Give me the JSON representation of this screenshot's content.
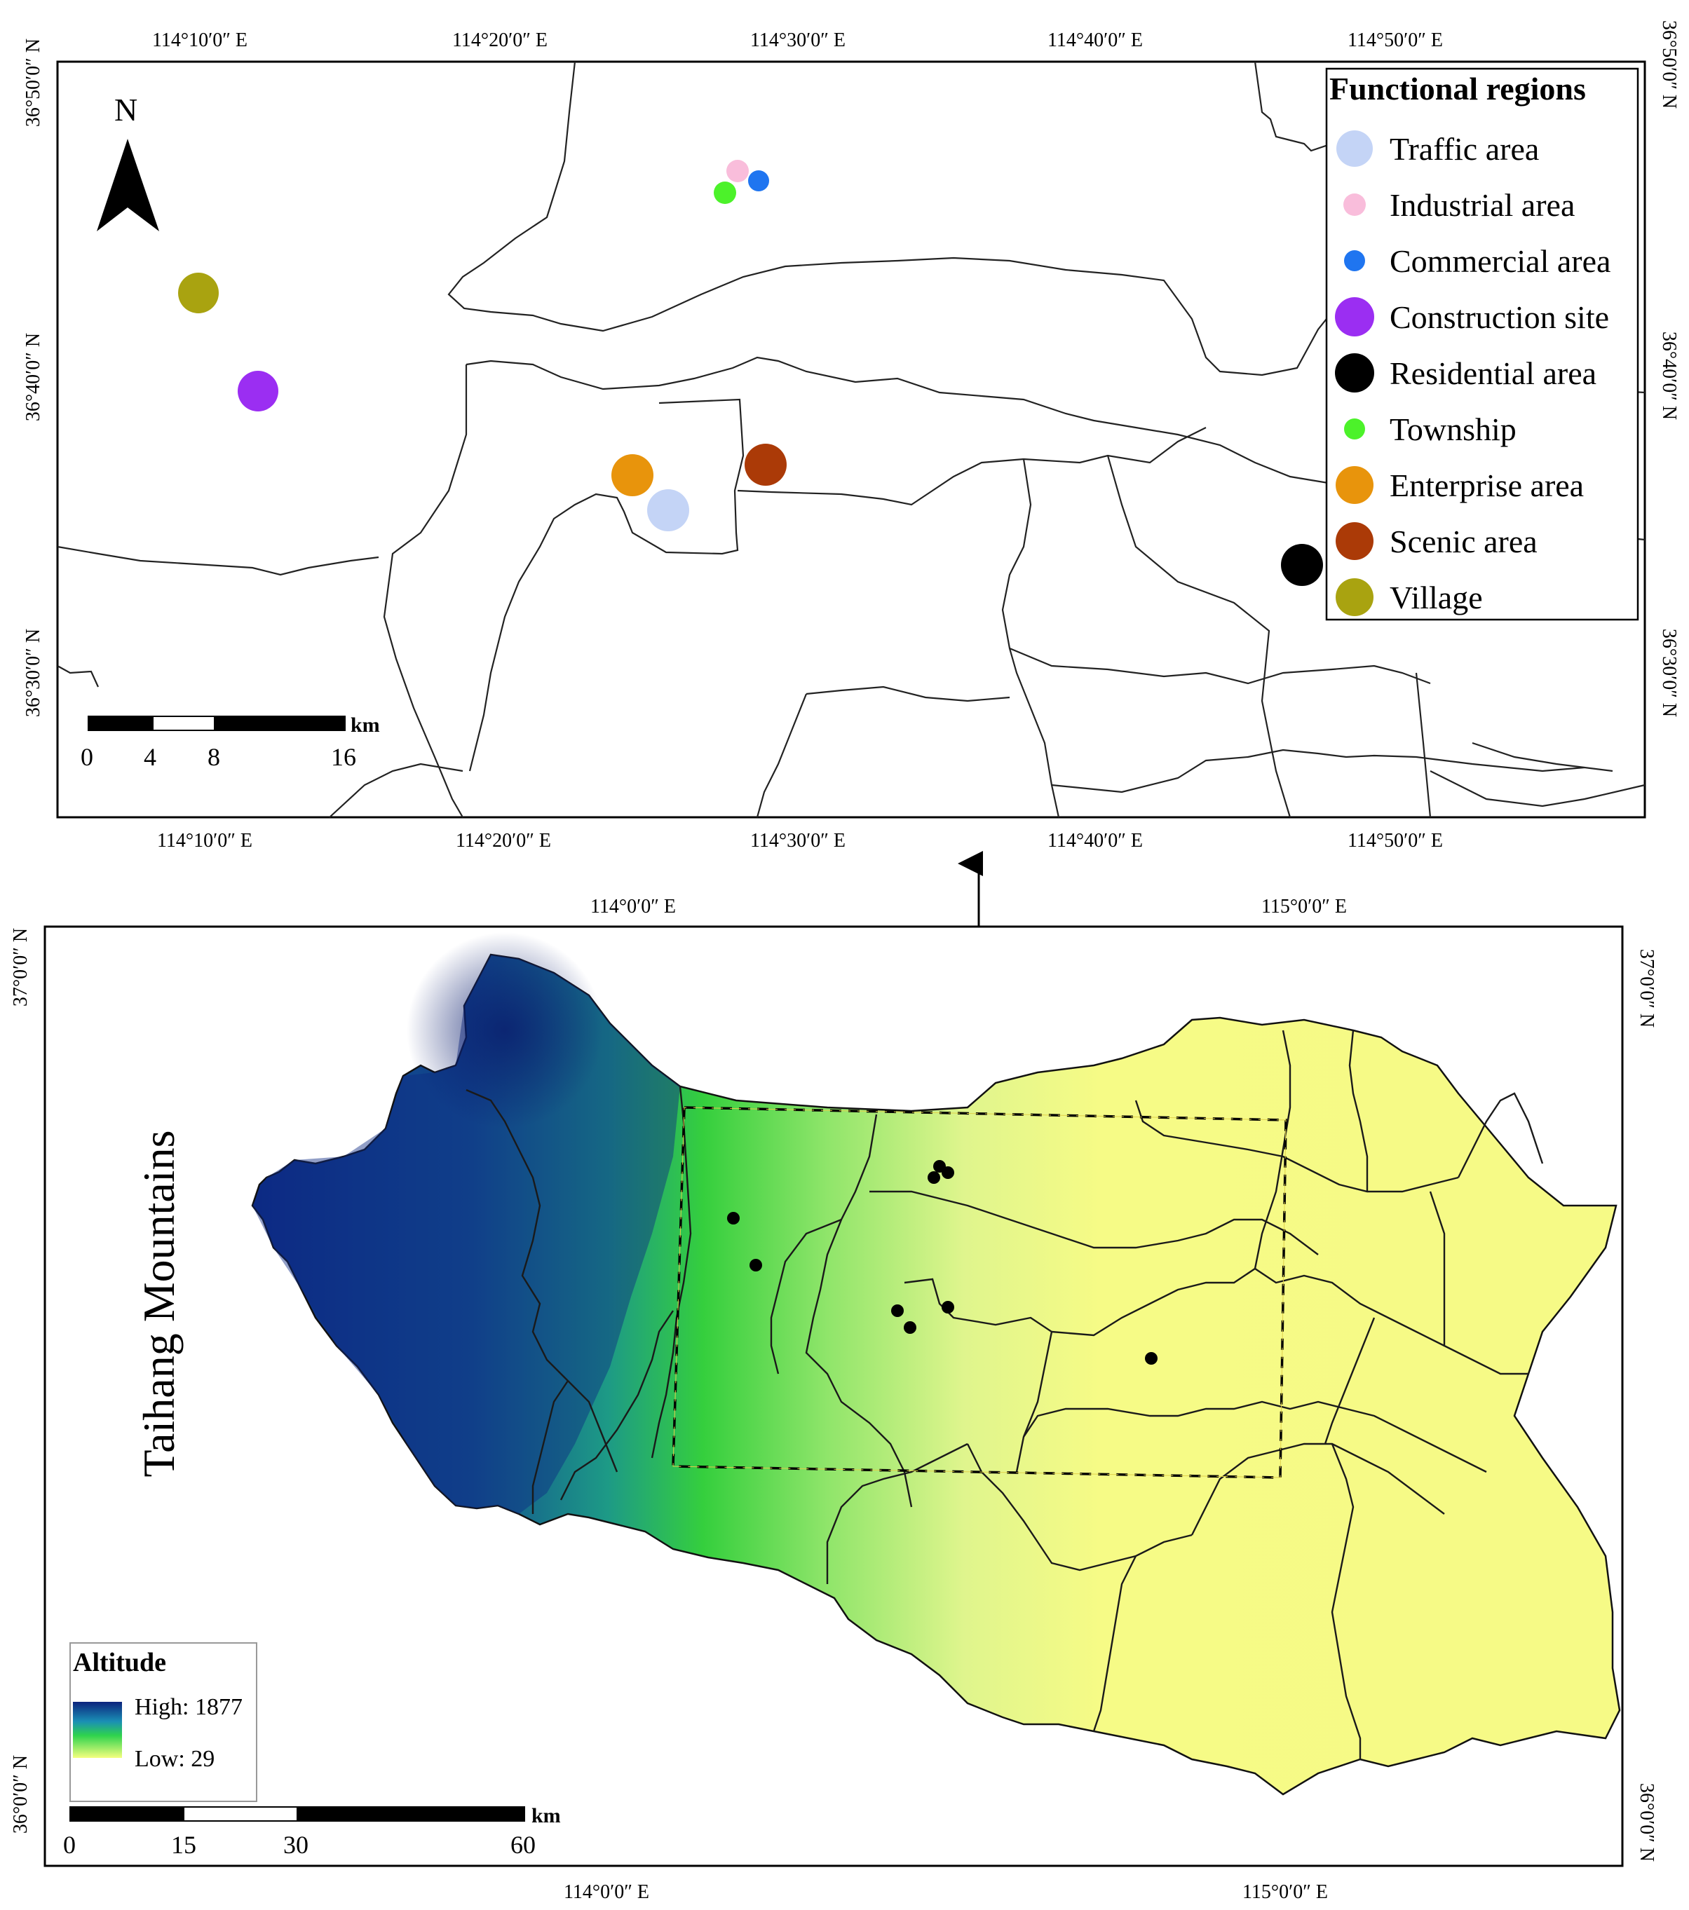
{
  "top_map": {
    "top_ticks": [
      "114°10′0″ E",
      "114°20′0″ E",
      "114°30′0″ E",
      "114°40′0″ E",
      "114°50′0″ E"
    ],
    "bottom_ticks": [
      "114°10′0″  E",
      "114°20′0″  E",
      "114°30′0″ E",
      "114°40′0″ E",
      "114°50′0″ E"
    ],
    "left_ticks": [
      "36°50′0″ N",
      "36°40′0″ N",
      "36°30′0″ N"
    ],
    "right_ticks": [
      "36°50′0″ N",
      "36°40′0″ N",
      "36°30′0″ N"
    ],
    "north_letter": "N",
    "scale": {
      "labels": [
        "0",
        "4",
        "8",
        "16"
      ],
      "unit": "km"
    },
    "legend": {
      "title": "Functional regions",
      "items": [
        {
          "label": "Traffic area",
          "color": "#c4d4f6"
        },
        {
          "label": "Industrial area",
          "color": "#f9bddb"
        },
        {
          "label": "Commercial area",
          "color": "#1f75f0"
        },
        {
          "label": "Construction site",
          "color": "#9b2ef2"
        },
        {
          "label": "Residential area",
          "color": "#000000"
        },
        {
          "label": "Township",
          "color": "#4cf22a"
        },
        {
          "label": "Enterprise area",
          "color": "#e8940c"
        },
        {
          "label": "Scenic area",
          "color": "#ab3a07"
        },
        {
          "label": "Village",
          "color": "#a9a310"
        }
      ]
    }
  },
  "bottom_map": {
    "top_ticks": [
      "114°0′0″ E",
      "115°0′0″ E"
    ],
    "bottom_ticks": [
      "114°0′0″ E",
      "115°0′0″ E"
    ],
    "left_ticks": [
      "37°0′0″ N",
      "36°0′0″ N"
    ],
    "right_ticks": [
      "37°0′0″ N",
      "36°0′0″ N"
    ],
    "region_label": "Taihang Mountains",
    "altitude_legend": {
      "title": "Altitude",
      "high_label": "High: 1877",
      "low_label": "Low: 29",
      "colors": [
        "#0c237d",
        "#1a8fb5",
        "#2ed34d",
        "#f4ff7e"
      ]
    },
    "scale": {
      "labels": [
        "0",
        "15",
        "30",
        "60"
      ],
      "unit": "km"
    }
  }
}
